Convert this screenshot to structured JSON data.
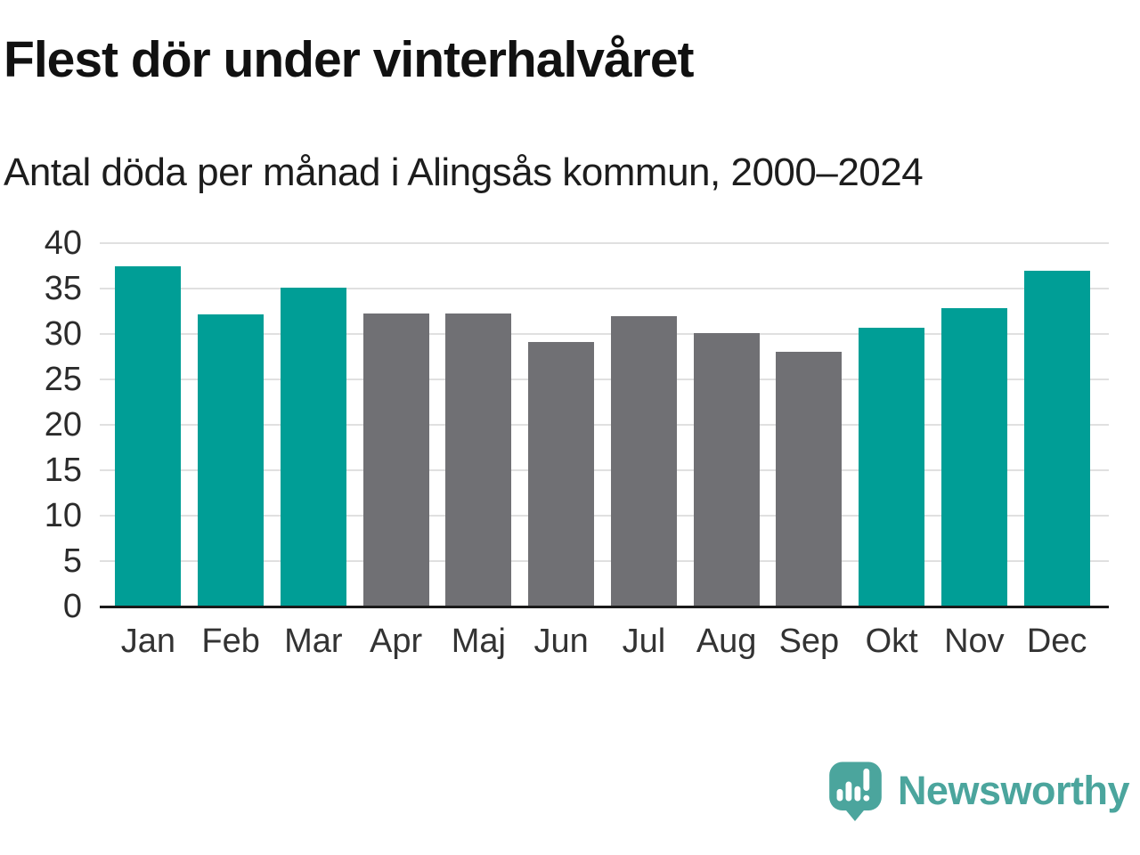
{
  "header": {
    "title": "Flest dör under vinterhalvåret",
    "subtitle": "Antal döda per månad i Alingsås kommun, 2000–2024"
  },
  "chart_data": {
    "type": "bar",
    "title": "Flest dör under vinterhalvåret",
    "subtitle": "Antal döda per månad i Alingsås kommun, 2000–2024",
    "categories": [
      "Jan",
      "Feb",
      "Mar",
      "Apr",
      "Maj",
      "Jun",
      "Jul",
      "Aug",
      "Sep",
      "Okt",
      "Nov",
      "Dec"
    ],
    "values": [
      37.5,
      32.2,
      35.1,
      32.3,
      32.3,
      29.1,
      32.0,
      30.1,
      28.0,
      30.7,
      32.8,
      37.0
    ],
    "bar_colors": [
      "teal",
      "teal",
      "teal",
      "gray",
      "gray",
      "gray",
      "gray",
      "gray",
      "gray",
      "teal",
      "teal",
      "teal"
    ],
    "colors": {
      "teal": "#009E96",
      "gray": "#707074"
    },
    "xlabel": "",
    "ylabel": "",
    "ylim": [
      0,
      40
    ],
    "yticks": [
      0,
      5,
      10,
      15,
      20,
      25,
      30,
      35,
      40
    ],
    "grid": "horizontal",
    "legend": "none",
    "highlight_meaning": "teal = winter half-year months (Okt–Mar), gray = summer half-year (Apr–Sep)"
  },
  "branding": {
    "name": "Newsworthy",
    "logo_icon": "speech-bubble-bar-chart-icon",
    "color": "#4BA59D"
  }
}
